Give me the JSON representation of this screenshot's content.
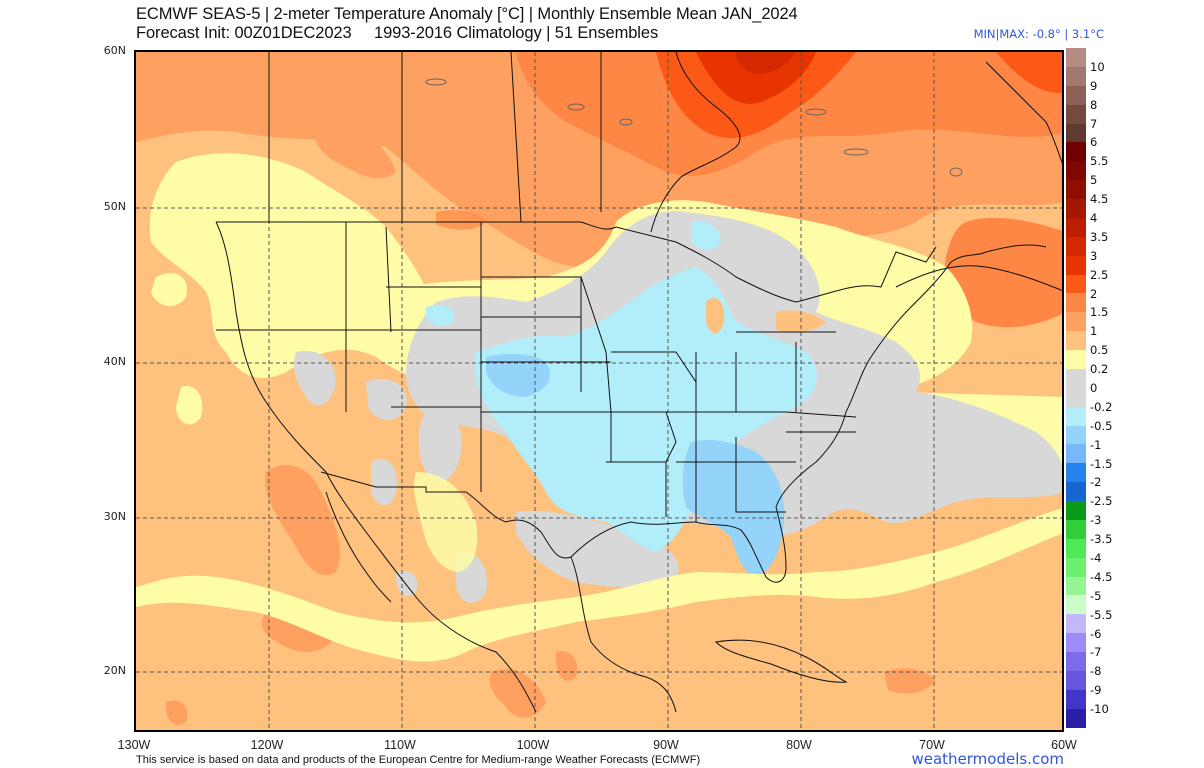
{
  "header": {
    "title_line1": "ECMWF SEAS-5 | 2-meter Temperature Anomaly [°C] | Monthly Ensemble Mean JAN_2024",
    "title_line2": "Forecast Init: 00Z01DEC2023     1993-2016 Climatology | 51 Ensembles",
    "minmax": "MIN|MAX: -0.8° | 3.1°C"
  },
  "map": {
    "region": "North America / CONUS",
    "latitude_labels": [
      "60N",
      "50N",
      "40N",
      "30N",
      "20N"
    ],
    "longitude_labels": [
      "130W",
      "120W",
      "110W",
      "100W",
      "90W",
      "80W",
      "70W",
      "60W"
    ],
    "regions": [
      {
        "area": "Hudson Bay / Northern Quebec",
        "anomaly_range": "2 to 3"
      },
      {
        "area": "Canadian Prairies & Northern Canada",
        "anomaly_range": "1 to 1.5"
      },
      {
        "area": "Pacific Northwest / Northern Rockies",
        "anomaly_range": "0.2 to 1"
      },
      {
        "area": "Northern Plains / Upper Midwest",
        "anomaly_range": "0 to 0.5"
      },
      {
        "area": "Central Plains / Ohio Valley / Southeast US",
        "anomaly_range": "-0.5 to 0"
      },
      {
        "area": "Alabama / Georgia / Florida",
        "anomaly_range": "-1 to -0.5"
      },
      {
        "area": "Western Atlantic off Southeast coast",
        "anomaly_range": "-0.2 to 0.2"
      },
      {
        "area": "Maritimes / Quebec",
        "anomaly_range": "1 to 2"
      },
      {
        "area": "Eastern Pacific / Mexico / Caribbean",
        "anomaly_range": "0.5 to 1.5"
      }
    ]
  },
  "colorbar": {
    "unit": "°C",
    "entries": [
      {
        "label": "10",
        "color": "#b48c84"
      },
      {
        "label": "9",
        "color": "#a27870"
      },
      {
        "label": "8",
        "color": "#8c6058"
      },
      {
        "label": "7",
        "color": "#754a3e"
      },
      {
        "label": "6",
        "color": "#5e3a30"
      },
      {
        "label": "5.5",
        "color": "#6e0000"
      },
      {
        "label": "5",
        "color": "#7e0800"
      },
      {
        "label": "4.5",
        "color": "#8e0e00"
      },
      {
        "label": "4",
        "color": "#a51800"
      },
      {
        "label": "3.5",
        "color": "#bd1e00"
      },
      {
        "label": "3",
        "color": "#d42800"
      },
      {
        "label": "2.5",
        "color": "#e83400"
      },
      {
        "label": "2",
        "color": "#fd5916"
      },
      {
        "label": "1.5",
        "color": "#fe8745"
      },
      {
        "label": "1",
        "color": "#fea160"
      },
      {
        "label": "0.5",
        "color": "#fec17e"
      },
      {
        "label": "0.2",
        "color": "#fefca6"
      },
      {
        "label": "0",
        "color": "#d8d8d8"
      },
      {
        "label": "-0.2",
        "color": "#d8d8d8"
      },
      {
        "label": "-0.5",
        "color": "#b2eefa"
      },
      {
        "label": "-1",
        "color": "#94d4fa"
      },
      {
        "label": "-1.5",
        "color": "#78b8fa"
      },
      {
        "label": "-2",
        "color": "#2582ee"
      },
      {
        "label": "-2.5",
        "color": "#1766d0"
      },
      {
        "label": "-3",
        "color": "#0c9a1a"
      },
      {
        "label": "-3.5",
        "color": "#30cf3a"
      },
      {
        "label": "-4",
        "color": "#4eea56"
      },
      {
        "label": "-4.5",
        "color": "#6cf070"
      },
      {
        "label": "-5",
        "color": "#96f494"
      },
      {
        "label": "-5.5",
        "color": "#ccfcc8"
      },
      {
        "label": "-6",
        "color": "#c4b8fc"
      },
      {
        "label": "-7",
        "color": "#9c8cfa"
      },
      {
        "label": "-8",
        "color": "#7c6cec"
      },
      {
        "label": "-9",
        "color": "#6656de"
      },
      {
        "label": "-10",
        "color": "#4236c8"
      },
      {
        "label": "",
        "color": "#2a1ea6"
      }
    ]
  },
  "footer": {
    "credit": "This service is based on data and products of the European Centre for Medium-range Weather Forecasts (ECMWF)",
    "brand": "weathermodels.com"
  }
}
